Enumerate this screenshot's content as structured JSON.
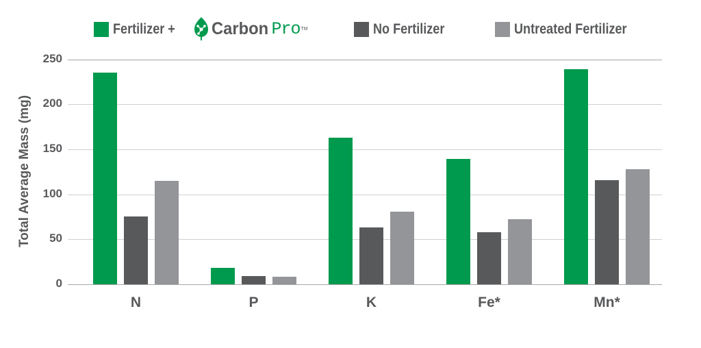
{
  "legend": {
    "items": [
      {
        "label": "Fertilizer +",
        "color": "#009a4e",
        "brand": {
          "name_bold": "Carbon",
          "name_light": "Pro",
          "tm": "TM",
          "icon": "leaf-molecule-icon"
        }
      },
      {
        "label": "No Fertilizer",
        "color": "#58595b"
      },
      {
        "label": "Untreated Fertilizer",
        "color": "#939598"
      }
    ]
  },
  "axes": {
    "ylabel": "Total Average Mass (mg)",
    "yticks": [
      "250",
      "200",
      "150",
      "100",
      "50",
      "0"
    ],
    "xticks": [
      "N",
      "P",
      "K",
      "Fe*",
      "Mn*"
    ]
  },
  "chart_data": {
    "type": "bar",
    "title": "",
    "xlabel": "",
    "ylabel": "Total Average Mass (mg)",
    "ylim": [
      0,
      250
    ],
    "grid": true,
    "legend_position": "top",
    "categories": [
      "N",
      "P",
      "K",
      "Fe*",
      "Mn*"
    ],
    "series": [
      {
        "name": "Fertilizer + CarbonPro",
        "color": "#009a4e",
        "values": [
          235,
          18,
          163,
          139,
          239
        ]
      },
      {
        "name": "No Fertilizer",
        "color": "#58595b",
        "values": [
          75,
          9,
          63,
          58,
          116
        ]
      },
      {
        "name": "Untreated Fertilizer",
        "color": "#939598",
        "values": [
          115,
          8,
          81,
          72,
          128
        ]
      }
    ]
  }
}
